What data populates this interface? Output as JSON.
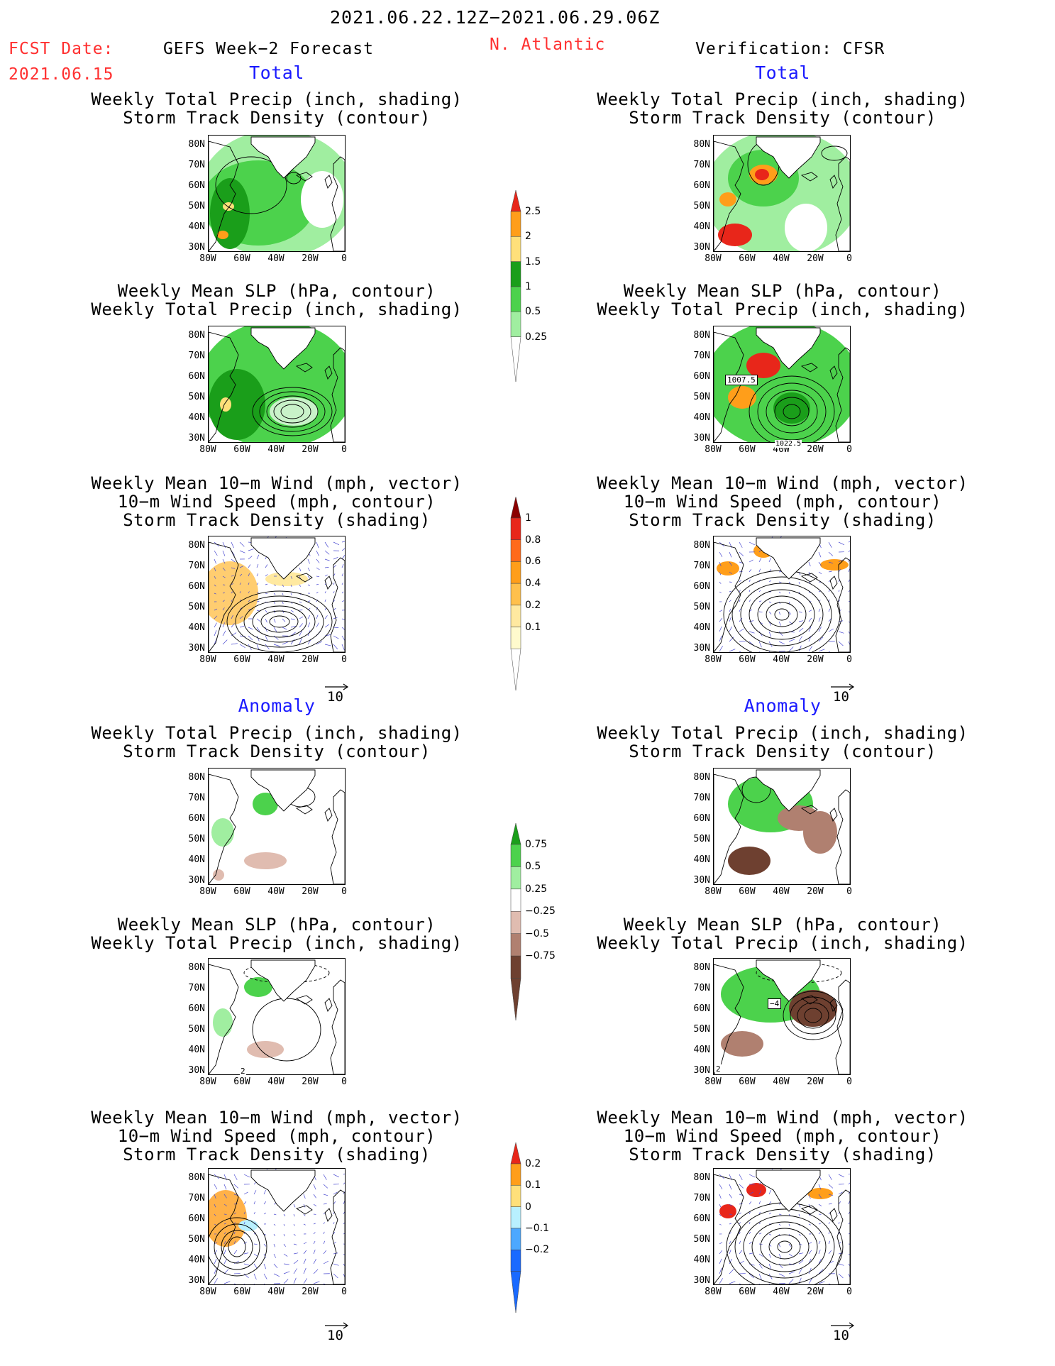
{
  "header": {
    "date_range": "2021.06.22.12Z−2021.06.29.06Z",
    "fcst_label": "FCST Date:",
    "fcst_date": "2021.06.15",
    "left_title": "GEFS Week−2 Forecast",
    "region": "N. Atlantic",
    "right_title": "Verification: CFSR"
  },
  "sections": {
    "total": "Total",
    "anomaly": "Anomaly"
  },
  "panel_titles": {
    "precip_storm": "Weekly Total Precip (inch, shading)\nStorm Track Density (contour)",
    "slp_precip": "Weekly Mean SLP (hPa, contour)\nWeekly Total Precip (inch, shading)",
    "wind_storm": "Weekly Mean 10−m Wind (mph, vector)\n10−m Wind Speed (mph, contour)\nStorm Track Density (shading)"
  },
  "axes": {
    "lat_labels": [
      "80N",
      "70N",
      "60N",
      "50N",
      "40N",
      "30N"
    ],
    "lon_labels": [
      "80W",
      "60W",
      "40W",
      "20W",
      "0"
    ]
  },
  "contour_labels": {
    "slp_a": "1007.5",
    "slp_b": "1022.5",
    "slp_anom": "−4",
    "slp_anom2": "2",
    "slp_anom_fc": "2"
  },
  "vector_reference": "10",
  "colorbars": {
    "precip_total": {
      "labels": [
        "2.5",
        "2",
        "1.5",
        "1",
        "0.5",
        "0.25"
      ],
      "colors": [
        "#e8261a",
        "#ff9e1a",
        "#ffe07a",
        "#1a9e1a",
        "#4cd24c",
        "#a0eea0"
      ]
    },
    "storm_total": {
      "labels": [
        "1",
        "0.8",
        "0.6",
        "0.4",
        "0.2",
        "0.1"
      ],
      "colors": [
        "#8b0000",
        "#e8261a",
        "#ff6a1a",
        "#ff9e1a",
        "#ffc04c",
        "#ffe9a0",
        "#fffacd"
      ]
    },
    "precip_anom": {
      "labels": [
        "0.75",
        "0.5",
        "0.25",
        "−0.25",
        "−0.5",
        "−0.75"
      ],
      "colors": [
        "#1a9e1a",
        "#4cd24c",
        "#a0eea0",
        "#ffffff",
        "#e0bcb0",
        "#b08070",
        "#6e4030"
      ]
    },
    "storm_anom": {
      "labels": [
        "0.2",
        "0.1",
        "0",
        "−0.1",
        "−0.2"
      ],
      "colors": [
        "#e8261a",
        "#ff9e1a",
        "#ffe07a",
        "#b8f0ff",
        "#4ca8ff",
        "#1a6aff"
      ]
    }
  }
}
